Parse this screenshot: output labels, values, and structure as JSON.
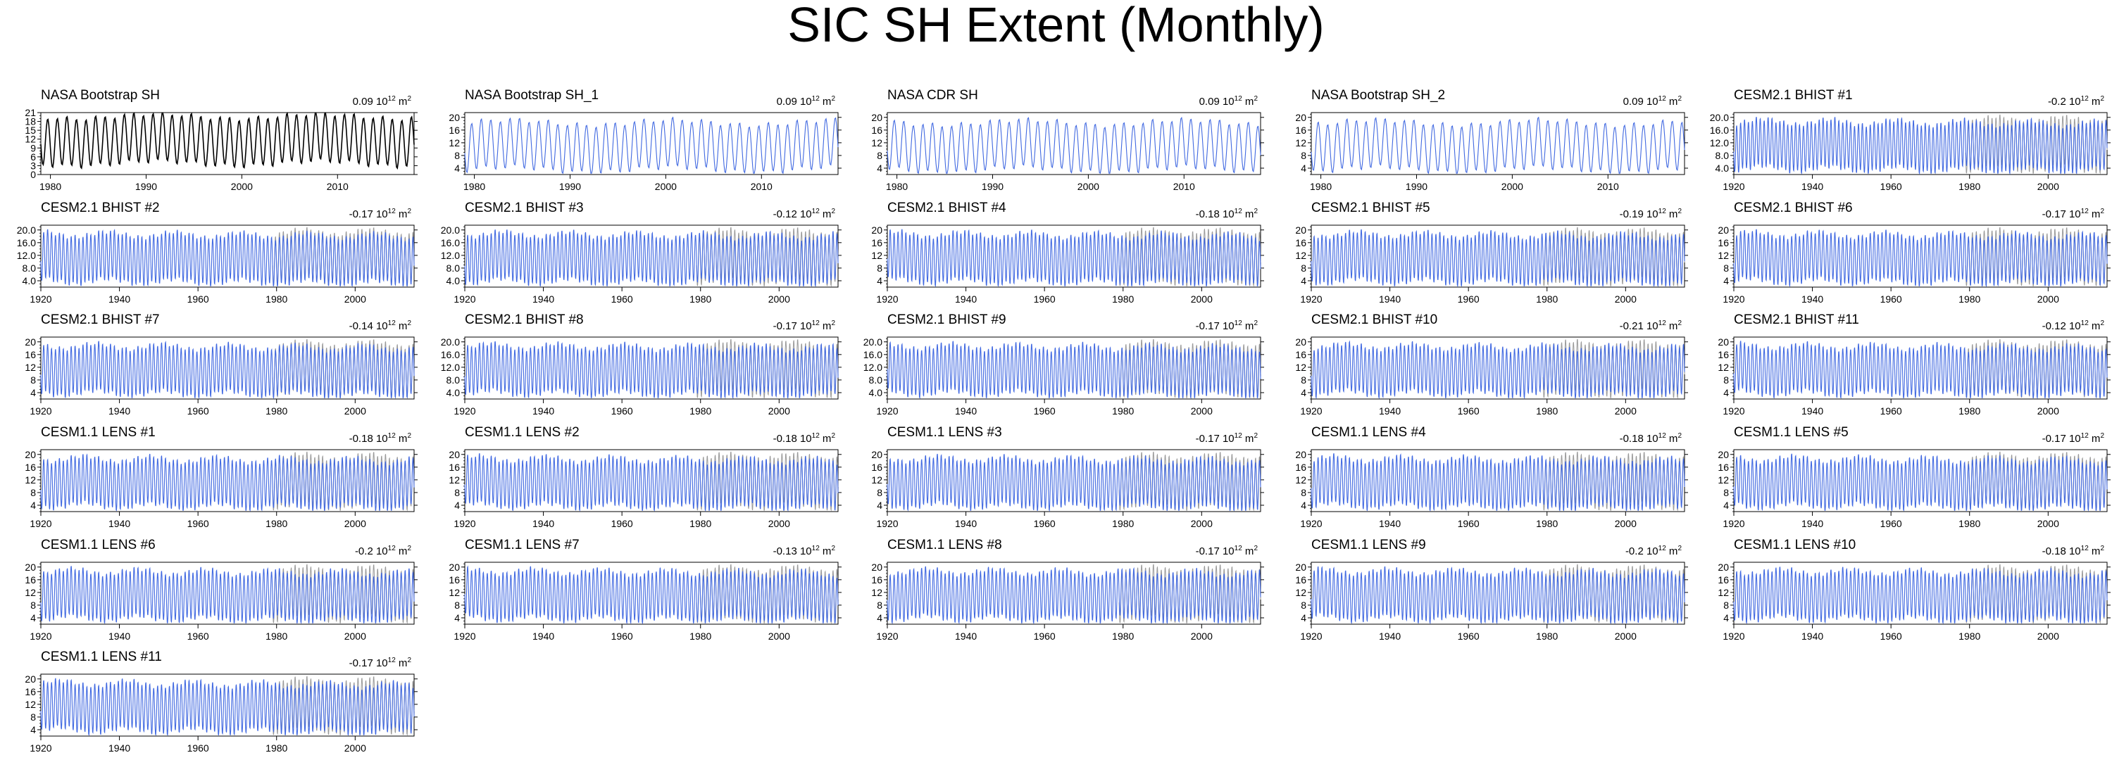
{
  "title": "SIC SH Extent (Monthly)",
  "colors": {
    "observation_line": "#000000",
    "model_line": "#4169e1",
    "obs_overlay": "#9a9a9a",
    "axis": "#000000"
  },
  "trend_unit": {
    "base": "10",
    "exponent": "12",
    "unit": "m",
    "unit_power": "2"
  },
  "chart_data": [
    {
      "type": "line",
      "name": "NASA Bootstrap SH",
      "trend": "0.09",
      "style": "obs",
      "years": [
        1979,
        2017
      ],
      "xticks": [
        1980,
        1990,
        2000,
        2010
      ],
      "yticks": [
        "0",
        "3",
        "6",
        "9",
        "12",
        "15",
        "18",
        "21"
      ],
      "ylim": [
        0,
        21
      ],
      "yvals": [
        0,
        3,
        6,
        9,
        12,
        15,
        18,
        21
      ]
    },
    {
      "type": "line",
      "name": "NASA Bootstrap SH_1",
      "trend": "0.09",
      "style": "obs_blue",
      "years": [
        1979,
        2017
      ],
      "xticks": [
        1980,
        1990,
        2000,
        2010
      ],
      "yticks": [
        "4",
        "8",
        "12",
        "16",
        "20"
      ],
      "ylim": [
        2,
        21.5
      ],
      "yvals": [
        4,
        8,
        12,
        16,
        20
      ]
    },
    {
      "type": "line",
      "name": "NASA CDR SH",
      "trend": "0.09",
      "style": "obs_blue",
      "years": [
        1979,
        2017
      ],
      "xticks": [
        1980,
        1990,
        2000,
        2010
      ],
      "yticks": [
        "4",
        "8",
        "12",
        "16",
        "20"
      ],
      "ylim": [
        2,
        21.5
      ],
      "yvals": [
        4,
        8,
        12,
        16,
        20
      ]
    },
    {
      "type": "line",
      "name": "NASA Bootstrap SH_2",
      "trend": "0.09",
      "style": "obs_blue",
      "years": [
        1979,
        2017
      ],
      "xticks": [
        1980,
        1990,
        2000,
        2010
      ],
      "yticks": [
        "4",
        "8",
        "12",
        "16",
        "20"
      ],
      "ylim": [
        2,
        21.5
      ],
      "yvals": [
        4,
        8,
        12,
        16,
        20
      ]
    },
    {
      "type": "line",
      "name": "CESM2.1 BHIST #1",
      "trend": "-0.2",
      "style": "model",
      "years": [
        1920,
        2014
      ],
      "xticks": [
        1920,
        1940,
        1960,
        1980,
        2000
      ],
      "yticks": [
        "4.0",
        "8.0",
        "12.0",
        "16.0",
        "20.0"
      ],
      "ylim": [
        2,
        21.5
      ],
      "yvals": [
        4,
        8,
        12,
        16,
        20
      ]
    },
    {
      "type": "line",
      "name": "CESM2.1 BHIST #2",
      "trend": "-0.17",
      "style": "model",
      "years": [
        1920,
        2014
      ],
      "xticks": [
        1920,
        1940,
        1960,
        1980,
        2000
      ],
      "yticks": [
        "4.0",
        "8.0",
        "12.0",
        "16.0",
        "20.0"
      ],
      "ylim": [
        2,
        21.5
      ],
      "yvals": [
        4,
        8,
        12,
        16,
        20
      ]
    },
    {
      "type": "line",
      "name": "CESM2.1 BHIST #3",
      "trend": "-0.12",
      "style": "model",
      "years": [
        1920,
        2014
      ],
      "xticks": [
        1920,
        1940,
        1960,
        1980,
        2000
      ],
      "yticks": [
        "4.0",
        "8.0",
        "12.0",
        "16.0",
        "20.0"
      ],
      "ylim": [
        2,
        21.5
      ],
      "yvals": [
        4,
        8,
        12,
        16,
        20
      ]
    },
    {
      "type": "line",
      "name": "CESM2.1 BHIST #4",
      "trend": "-0.18",
      "style": "model",
      "years": [
        1920,
        2014
      ],
      "xticks": [
        1920,
        1940,
        1960,
        1980,
        2000
      ],
      "yticks": [
        "4",
        "8",
        "12",
        "16",
        "20"
      ],
      "ylim": [
        2,
        21.5
      ],
      "yvals": [
        4,
        8,
        12,
        16,
        20
      ]
    },
    {
      "type": "line",
      "name": "CESM2.1 BHIST #5",
      "trend": "-0.19",
      "style": "model",
      "years": [
        1920,
        2014
      ],
      "xticks": [
        1920,
        1940,
        1960,
        1980,
        2000
      ],
      "yticks": [
        "4",
        "8",
        "12",
        "16",
        "20"
      ],
      "ylim": [
        2,
        21.5
      ],
      "yvals": [
        4,
        8,
        12,
        16,
        20
      ]
    },
    {
      "type": "line",
      "name": "CESM2.1 BHIST #6",
      "trend": "-0.17",
      "style": "model",
      "years": [
        1920,
        2014
      ],
      "xticks": [
        1920,
        1940,
        1960,
        1980,
        2000
      ],
      "yticks": [
        "4",
        "8",
        "12",
        "16",
        "20"
      ],
      "ylim": [
        2,
        21.5
      ],
      "yvals": [
        4,
        8,
        12,
        16,
        20
      ]
    },
    {
      "type": "line",
      "name": "CESM2.1 BHIST #7",
      "trend": "-0.14",
      "style": "model",
      "years": [
        1920,
        2014
      ],
      "xticks": [
        1920,
        1940,
        1960,
        1980,
        2000
      ],
      "yticks": [
        "4",
        "8",
        "12",
        "16",
        "20"
      ],
      "ylim": [
        2,
        21.5
      ],
      "yvals": [
        4,
        8,
        12,
        16,
        20
      ]
    },
    {
      "type": "line",
      "name": "CESM2.1 BHIST #8",
      "trend": "-0.17",
      "style": "model",
      "years": [
        1920,
        2014
      ],
      "xticks": [
        1920,
        1940,
        1960,
        1980,
        2000
      ],
      "yticks": [
        "4.0",
        "8.0",
        "12.0",
        "16.0",
        "20.0"
      ],
      "ylim": [
        2,
        21.5
      ],
      "yvals": [
        4,
        8,
        12,
        16,
        20
      ]
    },
    {
      "type": "line",
      "name": "CESM2.1 BHIST #9",
      "trend": "-0.17",
      "style": "model",
      "years": [
        1920,
        2014
      ],
      "xticks": [
        1920,
        1940,
        1960,
        1980,
        2000
      ],
      "yticks": [
        "4.0",
        "8.0",
        "12.0",
        "16.0",
        "20.0"
      ],
      "ylim": [
        2,
        21.5
      ],
      "yvals": [
        4,
        8,
        12,
        16,
        20
      ]
    },
    {
      "type": "line",
      "name": "CESM2.1 BHIST #10",
      "trend": "-0.21",
      "style": "model",
      "years": [
        1920,
        2014
      ],
      "xticks": [
        1920,
        1940,
        1960,
        1980,
        2000
      ],
      "yticks": [
        "4",
        "8",
        "12",
        "16",
        "20"
      ],
      "ylim": [
        2,
        21.5
      ],
      "yvals": [
        4,
        8,
        12,
        16,
        20
      ]
    },
    {
      "type": "line",
      "name": "CESM2.1 BHIST #11",
      "trend": "-0.12",
      "style": "model",
      "years": [
        1920,
        2014
      ],
      "xticks": [
        1920,
        1940,
        1960,
        1980,
        2000
      ],
      "yticks": [
        "4",
        "8",
        "12",
        "16",
        "20"
      ],
      "ylim": [
        2,
        21.5
      ],
      "yvals": [
        4,
        8,
        12,
        16,
        20
      ]
    },
    {
      "type": "line",
      "name": "CESM1.1 LENS #1",
      "trend": "-0.18",
      "style": "model",
      "years": [
        1920,
        2014
      ],
      "xticks": [
        1920,
        1940,
        1960,
        1980,
        2000
      ],
      "yticks": [
        "4",
        "8",
        "12",
        "16",
        "20"
      ],
      "ylim": [
        2,
        21.5
      ],
      "yvals": [
        4,
        8,
        12,
        16,
        20
      ]
    },
    {
      "type": "line",
      "name": "CESM1.1 LENS #2",
      "trend": "-0.18",
      "style": "model",
      "years": [
        1920,
        2014
      ],
      "xticks": [
        1920,
        1940,
        1960,
        1980,
        2000
      ],
      "yticks": [
        "4",
        "8",
        "12",
        "16",
        "20"
      ],
      "ylim": [
        2,
        21.5
      ],
      "yvals": [
        4,
        8,
        12,
        16,
        20
      ]
    },
    {
      "type": "line",
      "name": "CESM1.1 LENS #3",
      "trend": "-0.17",
      "style": "model",
      "years": [
        1920,
        2014
      ],
      "xticks": [
        1920,
        1940,
        1960,
        1980,
        2000
      ],
      "yticks": [
        "4",
        "8",
        "12",
        "16",
        "20"
      ],
      "ylim": [
        2,
        21.5
      ],
      "yvals": [
        4,
        8,
        12,
        16,
        20
      ]
    },
    {
      "type": "line",
      "name": "CESM1.1 LENS #4",
      "trend": "-0.18",
      "style": "model",
      "years": [
        1920,
        2014
      ],
      "xticks": [
        1920,
        1940,
        1960,
        1980,
        2000
      ],
      "yticks": [
        "4",
        "8",
        "12",
        "16",
        "20"
      ],
      "ylim": [
        2,
        21.5
      ],
      "yvals": [
        4,
        8,
        12,
        16,
        20
      ]
    },
    {
      "type": "line",
      "name": "CESM1.1 LENS #5",
      "trend": "-0.17",
      "style": "model",
      "years": [
        1920,
        2014
      ],
      "xticks": [
        1920,
        1940,
        1960,
        1980,
        2000
      ],
      "yticks": [
        "4",
        "8",
        "12",
        "16",
        "20"
      ],
      "ylim": [
        2,
        21.5
      ],
      "yvals": [
        4,
        8,
        12,
        16,
        20
      ]
    },
    {
      "type": "line",
      "name": "CESM1.1 LENS #6",
      "trend": "-0.2",
      "style": "model",
      "years": [
        1920,
        2014
      ],
      "xticks": [
        1920,
        1940,
        1960,
        1980,
        2000
      ],
      "yticks": [
        "4",
        "8",
        "12",
        "16",
        "20"
      ],
      "ylim": [
        2,
        21.5
      ],
      "yvals": [
        4,
        8,
        12,
        16,
        20
      ]
    },
    {
      "type": "line",
      "name": "CESM1.1 LENS #7",
      "trend": "-0.13",
      "style": "model",
      "years": [
        1920,
        2014
      ],
      "xticks": [
        1920,
        1940,
        1960,
        1980,
        2000
      ],
      "yticks": [
        "4",
        "8",
        "12",
        "16",
        "20"
      ],
      "ylim": [
        2,
        21.5
      ],
      "yvals": [
        4,
        8,
        12,
        16,
        20
      ]
    },
    {
      "type": "line",
      "name": "CESM1.1 LENS #8",
      "trend": "-0.17",
      "style": "model",
      "years": [
        1920,
        2014
      ],
      "xticks": [
        1920,
        1940,
        1960,
        1980,
        2000
      ],
      "yticks": [
        "4",
        "8",
        "12",
        "16",
        "20"
      ],
      "ylim": [
        2,
        21.5
      ],
      "yvals": [
        4,
        8,
        12,
        16,
        20
      ]
    },
    {
      "type": "line",
      "name": "CESM1.1 LENS #9",
      "trend": "-0.2",
      "style": "model",
      "years": [
        1920,
        2014
      ],
      "xticks": [
        1920,
        1940,
        1960,
        1980,
        2000
      ],
      "yticks": [
        "4",
        "8",
        "12",
        "16",
        "20"
      ],
      "ylim": [
        2,
        21.5
      ],
      "yvals": [
        4,
        8,
        12,
        16,
        20
      ]
    },
    {
      "type": "line",
      "name": "CESM1.1 LENS #10",
      "trend": "-0.18",
      "style": "model",
      "years": [
        1920,
        2014
      ],
      "xticks": [
        1920,
        1940,
        1960,
        1980,
        2000
      ],
      "yticks": [
        "4",
        "8",
        "12",
        "16",
        "20"
      ],
      "ylim": [
        2,
        21.5
      ],
      "yvals": [
        4,
        8,
        12,
        16,
        20
      ]
    },
    {
      "type": "line",
      "name": "CESM1.1 LENS #11",
      "trend": "-0.17",
      "style": "model",
      "years": [
        1920,
        2014
      ],
      "xticks": [
        1920,
        1940,
        1960,
        1980,
        2000
      ],
      "yticks": [
        "4",
        "8",
        "12",
        "16",
        "20"
      ],
      "ylim": [
        2,
        21.5
      ],
      "yvals": [
        4,
        8,
        12,
        16,
        20
      ]
    }
  ]
}
